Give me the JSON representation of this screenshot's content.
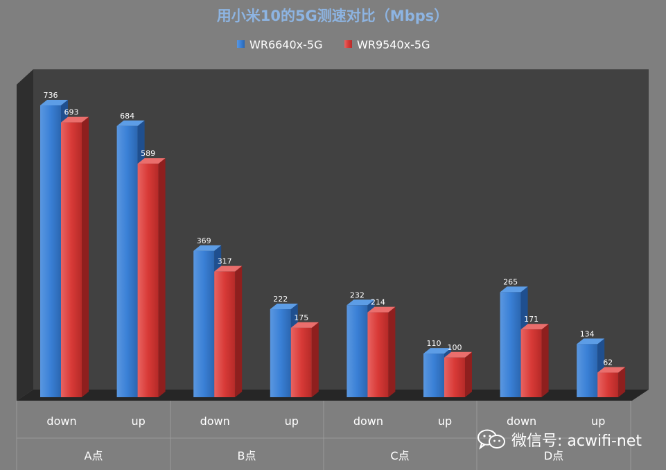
{
  "chart_data": {
    "type": "bar",
    "title": "用小米10的5G测速对比（Mbps）",
    "groups": [
      "A点",
      "B点",
      "C点",
      "D点"
    ],
    "categories": [
      "down",
      "up",
      "down",
      "up",
      "down",
      "up",
      "down",
      "up"
    ],
    "series": [
      {
        "name": "WR6640x-5G",
        "values": [
          736,
          684,
          369,
          222,
          232,
          110,
          265,
          134
        ]
      },
      {
        "name": "WR9540x-5G",
        "values": [
          693,
          589,
          317,
          175,
          214,
          100,
          171,
          62
        ]
      }
    ],
    "ylim": [
      0,
      800
    ],
    "legend_position": "top",
    "grid": false,
    "colors": {
      "background": "#7f7f7f",
      "plot_back": "#404040",
      "plot_floor": "#2b2b2b",
      "title": "#8db4e2",
      "series1": "#2e74c9",
      "series2": "#d0312f"
    }
  },
  "watermark": {
    "icon": "wechat-icon",
    "text": "微信号: acwifi-net"
  }
}
